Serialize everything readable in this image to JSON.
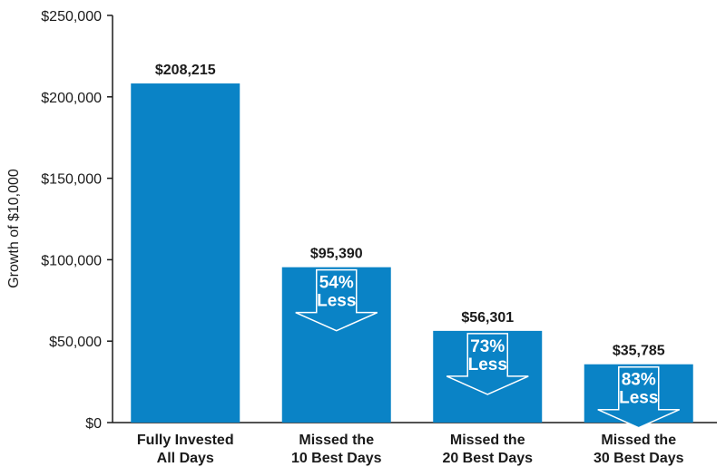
{
  "chart_data": {
    "type": "bar",
    "title": "",
    "xlabel": "",
    "ylabel": "Growth of $10,000",
    "ylim": [
      0,
      250000
    ],
    "yticks": [
      0,
      50000,
      100000,
      150000,
      200000,
      250000
    ],
    "ytick_labels": [
      "$0",
      "$50,000",
      "$100,000",
      "$150,000",
      "$200,000",
      "$250,000"
    ],
    "categories": [
      [
        "Fully Invested",
        "All Days"
      ],
      [
        "Missed the",
        "10 Best Days"
      ],
      [
        "Missed the",
        "20 Best Days"
      ],
      [
        "Missed the",
        "30 Best Days"
      ]
    ],
    "values": [
      208215,
      95390,
      56301,
      35785
    ],
    "value_labels": [
      "$208,215",
      "$95,390",
      "$56,301",
      "$35,785"
    ],
    "annotations": [
      null,
      [
        "54%",
        "Less"
      ],
      [
        "73%",
        "Less"
      ],
      [
        "83%",
        "Less"
      ]
    ],
    "grid": false,
    "colors": {
      "bar": "#0a83c6",
      "axis": "#1a1a1a",
      "arrow_stroke": "#ffffff"
    }
  }
}
